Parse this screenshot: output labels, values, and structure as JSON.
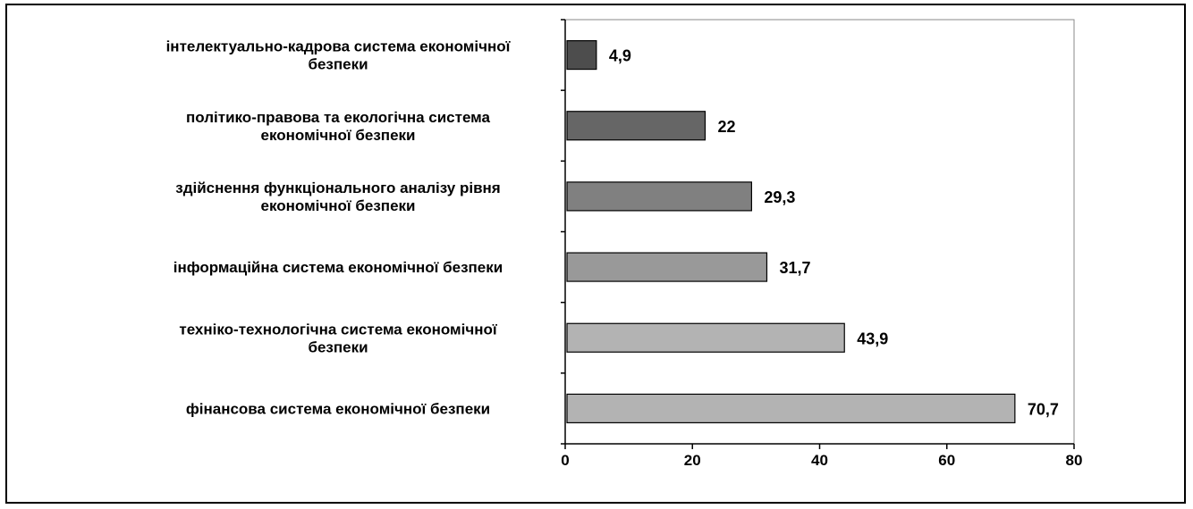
{
  "chart_data": {
    "type": "bar",
    "orientation": "horizontal",
    "categories": [
      [
        "інтелектуально-кадрова система економічної",
        "безпеки"
      ],
      [
        "політико-правова та екологічна система",
        "економічної безпеки"
      ],
      [
        "здійснення функціонального аналізу рівня",
        "економічної безпеки"
      ],
      [
        "інформаційна система економічної безпеки"
      ],
      [
        "техніко-технологічна система економічної",
        "безпеки"
      ],
      [
        "фінансова система економічної безпеки"
      ]
    ],
    "values": [
      4.9,
      22,
      29.3,
      31.7,
      43.9,
      70.7
    ],
    "value_labels": [
      "4,9",
      "22",
      "29,3",
      "31,7",
      "43,9",
      "70,7"
    ],
    "bar_colors": [
      "#4d4d4d",
      "#666666",
      "#808080",
      "#999999",
      "#b3b3b3",
      "#b3b3b3"
    ],
    "xlim": [
      0,
      80
    ],
    "xticks": [
      0,
      20,
      40,
      60,
      80
    ],
    "grid": false,
    "legend": "none",
    "title": "",
    "xlabel": "",
    "ylabel": ""
  }
}
